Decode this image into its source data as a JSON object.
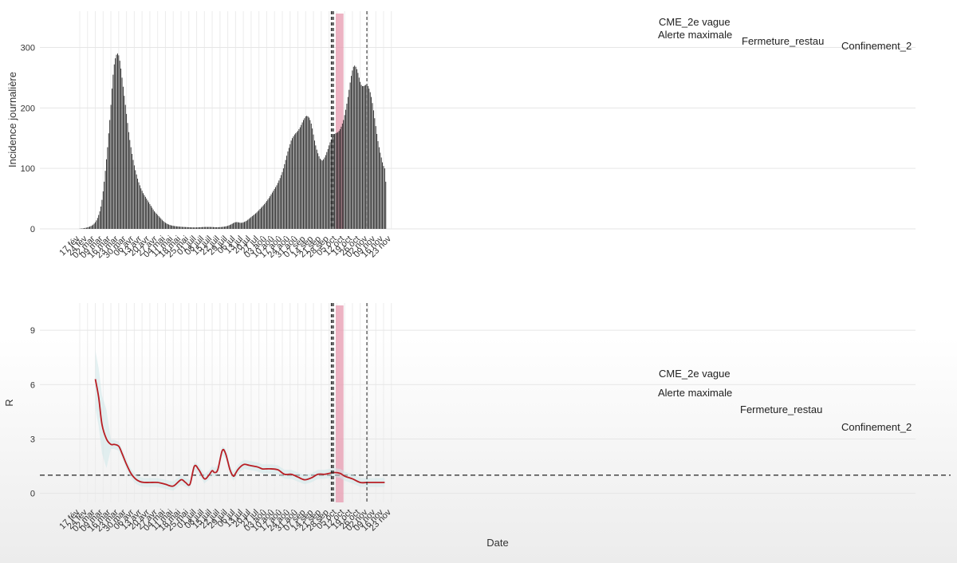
{
  "chart_data": [
    {
      "type": "bar",
      "ylabel": "Incidence journalière",
      "ylim": [
        0,
        360
      ],
      "yticks": [
        0,
        100,
        200,
        300
      ],
      "xticks": [
        "17 fév",
        "24 fév",
        "02 mar",
        "09 mar",
        "16 mar",
        "23 mar",
        "30 mar",
        "06 avr",
        "13 avr",
        "20 avr",
        "27 avr",
        "04 mai",
        "11 mai",
        "18 mai",
        "25 mai",
        "01 juil",
        "08 juil",
        "15 juil",
        "22 juil",
        "29 juil",
        "06 jul",
        "13 jul",
        "20 jul",
        "27 jul",
        "03 aoû",
        "10 aoû",
        "17 aoû",
        "24 aoû",
        "31 aoû",
        "07 sep",
        "14 sep",
        "21 sep",
        "28 sep",
        "05 oct",
        "12 oct",
        "19 oct",
        "26 oct",
        "02 nov",
        "09 nov",
        "16 nov",
        "23 nov"
      ],
      "grid": true,
      "x_start_day": 0,
      "series": [
        {
          "values": [
            0.3,
            0.5,
            0.7,
            0.9,
            1.2,
            1.6,
            2,
            2.5,
            3.1,
            3.8,
            4.6,
            5.6,
            7,
            8.8,
            11,
            14,
            18,
            23,
            29,
            37,
            48,
            62,
            78,
            96,
            115,
            135,
            158,
            180,
            205,
            232,
            255,
            272,
            282,
            288,
            290,
            287,
            278,
            265,
            250,
            235,
            220,
            205,
            190,
            175,
            160,
            147,
            135,
            124,
            114,
            105,
            97,
            90,
            83,
            77,
            72,
            67,
            63,
            59,
            56,
            53,
            50,
            47,
            44,
            41,
            38,
            35,
            32,
            29,
            27,
            25,
            23,
            21,
            19,
            17,
            15,
            13,
            11.5,
            10,
            9,
            8,
            7.2,
            6.5,
            5.9,
            5.4,
            5,
            4.7,
            4.4,
            4.2,
            4,
            3.8,
            3.6,
            3.5,
            3.3,
            3.2,
            3.1,
            3,
            2.9,
            2.8,
            2.7,
            2.6,
            2.5,
            2.5,
            2.4,
            2.4,
            2.4,
            2.4,
            2.5,
            2.6,
            2.7,
            2.8,
            2.9,
            3,
            3.1,
            3.2,
            3.2,
            3.2,
            3.2,
            3.2,
            3.1,
            3,
            2.9,
            2.8,
            2.7,
            2.7,
            2.7,
            2.8,
            2.9,
            3,
            3.2,
            3.4,
            3.7,
            4,
            4.5,
            5,
            5.7,
            6.5,
            7.5,
            8.5,
            9.5,
            10.5,
            11,
            11.2,
            11,
            10.6,
            10.2,
            10,
            10.2,
            10.8,
            11.5,
            12.5,
            13.5,
            15,
            16.5,
            18,
            19.5,
            21,
            22.5,
            24,
            25.5,
            27,
            29,
            31,
            33,
            35,
            37,
            39,
            41,
            43.5,
            46,
            48.5,
            51,
            54,
            57,
            60,
            63,
            66,
            69,
            72,
            76,
            80,
            84,
            89,
            94,
            100,
            107,
            114,
            121,
            128,
            134,
            140,
            146,
            150,
            153,
            156,
            158,
            160,
            162,
            165,
            168,
            172,
            176,
            180,
            183,
            186,
            187,
            186,
            184,
            180,
            174,
            166,
            156,
            146,
            138,
            131,
            125,
            120,
            116,
            114,
            113,
            115,
            118,
            122,
            127,
            132,
            138,
            143,
            148,
            152,
            155,
            157,
            158,
            159,
            160,
            162,
            165,
            169,
            174,
            180,
            188,
            197,
            207,
            218,
            230,
            242,
            253,
            262,
            268,
            270,
            268,
            264,
            258,
            250,
            243,
            238,
            236,
            236,
            237,
            238,
            238,
            236,
            232,
            226,
            218,
            208,
            196,
            183,
            170,
            157,
            145,
            135,
            126,
            118,
            110,
            104,
            100,
            78
          ]
        }
      ],
      "annotations": [
        {
          "label": "CME_2e vague",
          "x_day": 226
        },
        {
          "label": "Alerte maximale",
          "x_day": 227
        },
        {
          "label": "Fermeture_restau",
          "x_day": 228
        },
        {
          "label": "Confinement_2",
          "x_day": 258
        }
      ],
      "shaded_region": {
        "x_day_start": 230,
        "x_day_end": 237
      }
    },
    {
      "type": "line",
      "xlabel": "Date",
      "ylabel": "R",
      "ylim": [
        -0.5,
        10.5
      ],
      "yticks": [
        0,
        3,
        6,
        9
      ],
      "hline": 1,
      "grid": true,
      "xticks": [
        "17 fév",
        "24 fév",
        "02 mar",
        "09 mar",
        "16 mar",
        "23 mar",
        "30 mar",
        "06 avr",
        "13 avr",
        "20 avr",
        "27 avr",
        "04 mai",
        "11 mai",
        "18 mai",
        "25 mai",
        "01 juil",
        "08 juil",
        "15 juil",
        "22 juil",
        "29 juil",
        "06 jul",
        "13 jul",
        "20 jul",
        "27 jul",
        "03 aoû",
        "10 aoû",
        "17 aoû",
        "24 aoû",
        "31 aoû",
        "07 sep",
        "14 sep",
        "21 sep",
        "28 sep",
        "05 oct",
        "12 oct",
        "19 oct",
        "26 oct",
        "02 nov",
        "09 nov",
        "16 nov",
        "23 nov"
      ],
      "series": [
        {
          "x_days": [
            14,
            17,
            20,
            24,
            28,
            31,
            35,
            38,
            42,
            46,
            50,
            54,
            58,
            63,
            70,
            77,
            84,
            91,
            95,
            99,
            103,
            107,
            112,
            116,
            119,
            121,
            124,
            128,
            131,
            135,
            138,
            140,
            142,
            145,
            148,
            152,
            156,
            160,
            164,
            168,
            172,
            178,
            184,
            190,
            196,
            202,
            208,
            214,
            220,
            224,
            229,
            234,
            238,
            245,
            252,
            258,
            264,
            270,
            274
          ],
          "y": [
            6.3,
            5.3,
            3.8,
            3,
            2.7,
            2.7,
            2.6,
            2.2,
            1.6,
            1.1,
            0.8,
            0.65,
            0.6,
            0.6,
            0.6,
            0.5,
            0.4,
            0.75,
            0.6,
            0.5,
            1.5,
            1.3,
            0.8,
            1.0,
            1.25,
            1.15,
            1.3,
            2.35,
            2.2,
            1.3,
            0.95,
            1.1,
            1.3,
            1.5,
            1.6,
            1.55,
            1.5,
            1.45,
            1.35,
            1.35,
            1.35,
            1.3,
            1.05,
            1.05,
            0.9,
            0.75,
            0.85,
            1.05,
            1.05,
            1.1,
            1.15,
            1.1,
            0.95,
            0.8,
            0.6,
            0.6,
            0.6,
            0.6,
            0.6
          ]
        }
      ],
      "annotations": [
        {
          "label": "CME_2e vague",
          "x_day": 226
        },
        {
          "label": "Alerte maximale",
          "x_day": 227
        },
        {
          "label": "Fermeture_restau",
          "x_day": 228
        },
        {
          "label": "Confinement_2",
          "x_day": 258
        }
      ],
      "shaded_region": {
        "x_day_start": 230,
        "x_day_end": 237
      }
    }
  ]
}
